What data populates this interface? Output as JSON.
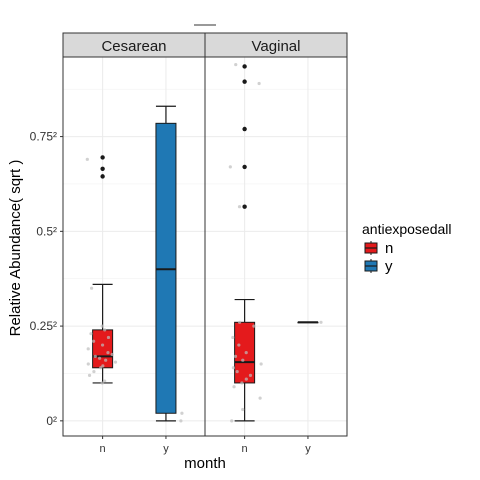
{
  "chart_data": {
    "type": "box",
    "title": "",
    "xlabel": "month",
    "ylabel": "Relative Abundance( sqrt )",
    "y_scale": "sqrt",
    "y_tick_labels": [
      "0²",
      "0.25²",
      "0.5²",
      "0.75²"
    ],
    "y_tick_values": [
      0,
      0.25,
      0.5,
      0.75
    ],
    "ylim_sqrt": [
      -0.04,
      0.96
    ],
    "grid": true,
    "legend": {
      "title": "antiexposedall",
      "position": "right",
      "entries": [
        {
          "label": "n",
          "color": "#e41a1c"
        },
        {
          "label": "y",
          "color": "#1f78b4"
        }
      ]
    },
    "panels": [
      {
        "label": "Cesarean",
        "categories": [
          "n",
          "y"
        ],
        "boxes": [
          {
            "category": "n",
            "group": "n",
            "color": "#e41a1c",
            "sqrt_stats": {
              "whisker_low": 0.1,
              "q1": 0.14,
              "median": 0.17,
              "q3": 0.24,
              "whisker_high": 0.36
            },
            "outliers_sqrt": [
              0.645,
              0.665,
              0.695
            ],
            "points_sqrt": [
              0.1,
              0.105,
              0.12,
              0.13,
              0.14,
              0.145,
              0.15,
              0.155,
              0.16,
              0.165,
              0.17,
              0.175,
              0.18,
              0.19,
              0.2,
              0.21,
              0.22,
              0.23,
              0.24,
              0.25,
              0.35,
              0.69
            ]
          },
          {
            "category": "y",
            "group": "y",
            "color": "#1f78b4",
            "sqrt_stats": {
              "whisker_low": 0.0,
              "q1": 0.02,
              "median": 0.4,
              "q3": 0.785,
              "whisker_high": 0.83
            },
            "outliers_sqrt": [],
            "points_sqrt": [
              0.0,
              0.02
            ]
          }
        ]
      },
      {
        "label": "Vaginal",
        "categories": [
          "n",
          "y"
        ],
        "boxes": [
          {
            "category": "n",
            "group": "n",
            "color": "#e41a1c",
            "sqrt_stats": {
              "whisker_low": 0.0,
              "q1": 0.1,
              "median": 0.155,
              "q3": 0.26,
              "whisker_high": 0.32
            },
            "outliers_sqrt": [
              0.565,
              0.67,
              0.77,
              0.895,
              0.935
            ],
            "points_sqrt": [
              0.0,
              0.03,
              0.06,
              0.09,
              0.1,
              0.11,
              0.12,
              0.13,
              0.14,
              0.15,
              0.16,
              0.17,
              0.18,
              0.2,
              0.22,
              0.25,
              0.26,
              0.565,
              0.67,
              0.89,
              0.94
            ]
          },
          {
            "category": "y",
            "group": "y",
            "color": "#1f78b4",
            "sqrt_stats": {
              "whisker_low": 0.26,
              "q1": 0.26,
              "median": 0.26,
              "q3": 0.26,
              "whisker_high": 0.26
            },
            "outliers_sqrt": [],
            "points_sqrt": [
              0.26
            ]
          }
        ]
      }
    ]
  }
}
